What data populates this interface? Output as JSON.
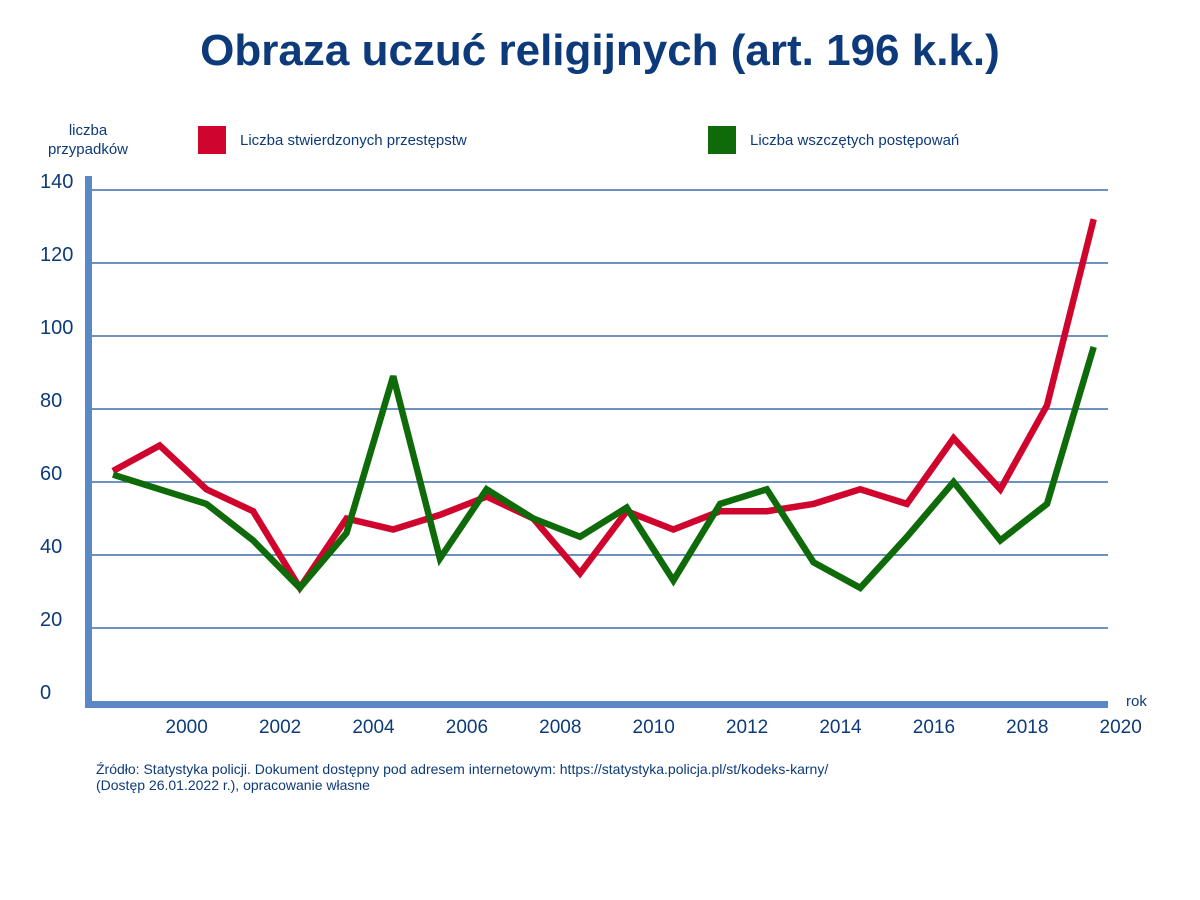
{
  "title": "Obraza uczuć religijnych (art. 196 k.k.)",
  "colors": {
    "text": "#0d3a7a",
    "axis": "#5a88c4",
    "grid": "#3d6fae"
  },
  "chart_data": {
    "type": "line",
    "title": "Obraza uczuć religijnych (art. 196 k.k.)",
    "ylabel_line1": "liczba",
    "ylabel_line2": "przypadków",
    "xlabel": "rok",
    "ylim": [
      0,
      140
    ],
    "y_ticks": [
      "0",
      "20",
      "40",
      "60",
      "80",
      "100",
      "120",
      "140"
    ],
    "x_ticks": [
      "2000",
      "2002",
      "2004",
      "2006",
      "2008",
      "2010",
      "2012",
      "2014",
      "2016",
      "2018",
      "2020"
    ],
    "grid": true,
    "legend_position": "top",
    "x": [
      1999,
      2000,
      2001,
      2002,
      2003,
      2004,
      2005,
      2006,
      2007,
      2008,
      2009,
      2010,
      2011,
      2012,
      2013,
      2014,
      2015,
      2016,
      2017,
      2018,
      2019,
      2020
    ],
    "series": [
      {
        "name": "Liczba stwierdzonych przestępstw",
        "color": "#d0052d",
        "values": [
          63,
          70,
          58,
          52,
          31,
          50,
          47,
          51,
          56,
          50,
          35,
          52,
          47,
          52,
          52,
          54,
          58,
          54,
          72,
          58,
          81,
          132
        ]
      },
      {
        "name": "Liczba wszczętych postępowań",
        "color": "#0f6a0a",
        "values": [
          62,
          58,
          54,
          44,
          31,
          46,
          89,
          39,
          58,
          50,
          45,
          53,
          33,
          54,
          58,
          38,
          31,
          45,
          60,
          44,
          54,
          97
        ]
      }
    ]
  },
  "source": {
    "line1": "Źródło: Statystyka policji. Dokument dostępny pod adresem internetowym: https://statystyka.policja.pl/st/kodeks-karny/",
    "line2": "(Dostęp 26.01.2022 r.), opracowanie własne"
  }
}
